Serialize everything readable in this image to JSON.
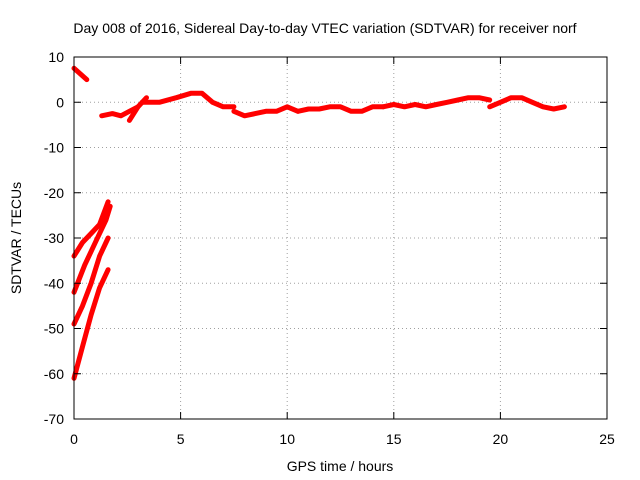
{
  "chart_data": {
    "type": "line",
    "title": "Day 008 of 2016, Sidereal Day-to-day VTEC variation (SDTVAR) for receiver norf",
    "xlabel": "GPS time / hours",
    "ylabel": "SDTVAR / TECUs",
    "xlim": [
      0,
      25
    ],
    "ylim": [
      -70,
      10
    ],
    "x_ticks": [
      0,
      5,
      10,
      15,
      20,
      25
    ],
    "y_ticks": [
      10,
      0,
      -10,
      -20,
      -30,
      -40,
      -50,
      -60,
      -70
    ],
    "grid": true,
    "legend": "none",
    "series_color": "#ff0000",
    "series": [
      {
        "x": [
          0.0,
          0.6
        ],
        "y": [
          7.5,
          5.0
        ]
      },
      {
        "x": [
          0.0,
          0.4,
          0.8,
          1.2,
          1.6
        ],
        "y": [
          -34,
          -31,
          -29,
          -27,
          -22
        ]
      },
      {
        "x": [
          0.0,
          0.5,
          1.0,
          1.5,
          1.7
        ],
        "y": [
          -42,
          -36,
          -31,
          -26,
          -23
        ]
      },
      {
        "x": [
          0.0,
          0.4,
          0.8,
          1.2,
          1.6
        ],
        "y": [
          -49,
          -45,
          -40,
          -34,
          -30
        ]
      },
      {
        "x": [
          0.0,
          0.4,
          0.8,
          1.2,
          1.6
        ],
        "y": [
          -61,
          -54,
          -47,
          -41,
          -37
        ]
      },
      {
        "x": [
          1.3,
          1.8,
          2.2,
          2.6,
          3.0
        ],
        "y": [
          -3,
          -2.5,
          -3,
          -2,
          -1
        ]
      },
      {
        "x": [
          2.6,
          3.0,
          3.4
        ],
        "y": [
          -4,
          -1,
          1
        ]
      },
      {
        "x": [
          3.2,
          4.0,
          4.8,
          5.5,
          6.0,
          6.5,
          7.0,
          7.5
        ],
        "y": [
          0,
          0,
          1,
          2,
          2,
          0,
          -1,
          -1
        ]
      },
      {
        "x": [
          7.5,
          8.0,
          8.5,
          9.0,
          9.5,
          10.0,
          10.5
        ],
        "y": [
          -2,
          -3,
          -2.5,
          -2,
          -2,
          -1,
          -2
        ]
      },
      {
        "x": [
          10.5,
          11.0,
          11.5,
          12.0,
          12.5,
          13.0,
          13.5,
          14.0,
          14.5
        ],
        "y": [
          -2,
          -1.5,
          -1.5,
          -1,
          -1,
          -2,
          -2,
          -1,
          -1
        ]
      },
      {
        "x": [
          14.5,
          15.0,
          15.5,
          16.0,
          16.5,
          17.0,
          17.5,
          18.0,
          18.5,
          19.0,
          19.5
        ],
        "y": [
          -1,
          -0.5,
          -1,
          -0.5,
          -1,
          -0.5,
          0,
          0.5,
          1,
          1,
          0.5
        ]
      },
      {
        "x": [
          19.5,
          20.0,
          20.5,
          21.0,
          21.5,
          22.0,
          22.5,
          23.0
        ],
        "y": [
          -1,
          0,
          1,
          1,
          0,
          -1,
          -1.5,
          -1
        ]
      }
    ]
  }
}
